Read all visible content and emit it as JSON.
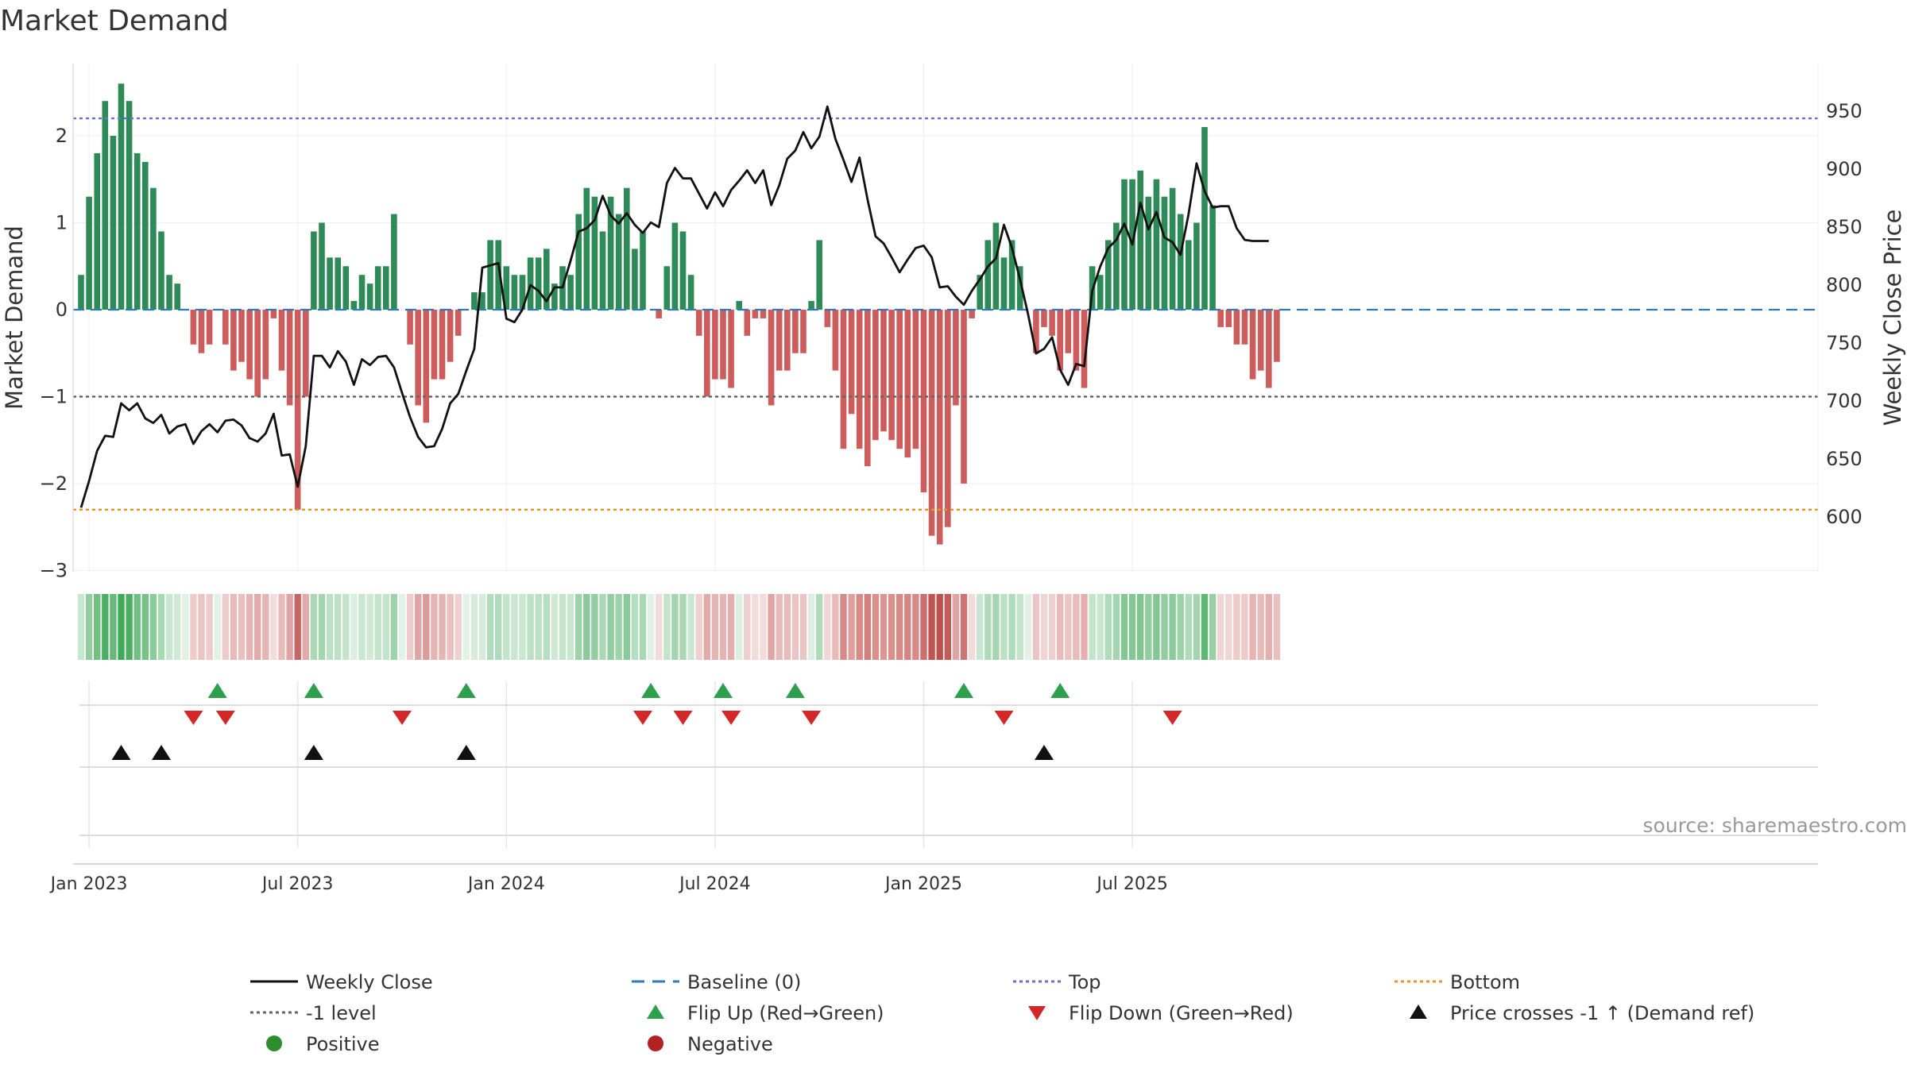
{
  "chart_data": {
    "type": "bar",
    "title": "Market Demand",
    "ylabel": "Market Demand",
    "y2label": "Weekly Close Price",
    "ylim": [
      -3.2,
      2.8
    ],
    "y2lim": [
      547,
      985
    ],
    "yticks": [
      "2",
      "1",
      "0",
      "−1",
      "−2",
      "−3"
    ],
    "y2ticks": [
      "950",
      "900",
      "850",
      "800",
      "750",
      "700",
      "650",
      "600"
    ],
    "xticks": [
      "Jan 2023",
      "Jul 2023",
      "Jan 2024",
      "Jul 2024",
      "Jan 2025",
      "Jul 2025"
    ],
    "reference_levels": {
      "top": 2.2,
      "bottom": -2.3,
      "minus_one": -1,
      "baseline": 0
    },
    "demand": [
      0.4,
      1.3,
      1.8,
      2.4,
      2.0,
      2.6,
      2.4,
      1.8,
      1.7,
      1.4,
      0.9,
      0.4,
      0.3,
      0,
      -0.4,
      -0.5,
      -0.4,
      0,
      -0.4,
      -0.7,
      -0.6,
      -0.8,
      -1.0,
      -0.8,
      -0.1,
      -0.7,
      -1.1,
      -2.3,
      -1.0,
      0.9,
      1.0,
      0.6,
      0.6,
      0.5,
      0.1,
      0.4,
      0.3,
      0.5,
      0.5,
      1.1,
      0,
      -0.4,
      -1.1,
      -1.3,
      -0.8,
      -0.8,
      -0.6,
      -0.3,
      0,
      0.2,
      0.2,
      0.8,
      0.8,
      0.5,
      0.4,
      0.4,
      0.6,
      0.6,
      0.7,
      0.3,
      0.5,
      0.4,
      1.1,
      1.4,
      1.3,
      0.9,
      1.3,
      1.1,
      1.4,
      0.7,
      0.9,
      0,
      -0.1,
      0.5,
      1.0,
      0.9,
      0.4,
      -0.3,
      -1.0,
      -0.8,
      -0.8,
      -0.9,
      0.1,
      -0.3,
      -0.1,
      -0.1,
      -1.1,
      -0.7,
      -0.7,
      -0.5,
      -0.5,
      0.1,
      0.8,
      -0.2,
      -0.7,
      -1.6,
      -1.2,
      -1.6,
      -1.8,
      -1.5,
      -1.4,
      -1.5,
      -1.6,
      -1.7,
      -1.6,
      -2.1,
      -2.6,
      -2.7,
      -2.5,
      -1.1,
      -2.0,
      -0.1,
      0.4,
      0.8,
      1.0,
      0.6,
      0.8,
      0.5,
      0,
      -0.5,
      -0.2,
      -0.3,
      -0.7,
      -0.5,
      -0.7,
      -0.9,
      0.5,
      0.4,
      0.8,
      1.0,
      1.5,
      1.5,
      1.6,
      1.3,
      1.5,
      1.3,
      1.4,
      1.1,
      0.8,
      1.0,
      2.1,
      1.2,
      -0.2,
      -0.2,
      -0.4,
      -0.4,
      -0.8,
      -0.7,
      -0.9,
      -0.6
    ],
    "weekly_close": [
      608,
      631,
      657,
      670,
      669,
      698,
      692,
      698,
      685,
      681,
      688,
      672,
      678,
      680,
      663,
      674,
      680,
      673,
      683,
      684,
      679,
      668,
      665,
      672,
      689,
      653,
      654,
      626,
      661,
      739,
      739,
      729,
      743,
      734,
      714,
      736,
      731,
      738,
      739,
      729,
      707,
      686,
      669,
      660,
      661,
      676,
      698,
      706,
      726,
      745,
      815,
      817,
      819,
      771,
      768,
      779,
      800,
      795,
      786,
      798,
      798,
      821,
      846,
      849,
      856,
      877,
      860,
      853,
      862,
      852,
      845,
      854,
      850,
      888,
      901,
      892,
      892,
      879,
      866,
      880,
      868,
      882,
      890,
      899,
      888,
      899,
      869,
      886,
      909,
      916,
      932,
      918,
      928,
      954,
      926,
      908,
      889,
      910,
      874,
      842,
      836,
      824,
      811,
      822,
      832,
      834,
      824,
      798,
      799,
      790,
      783,
      795,
      805,
      816,
      823,
      852,
      832,
      805,
      775,
      741,
      745,
      755,
      727,
      714,
      732,
      730,
      795,
      816,
      832,
      839,
      853,
      835,
      871,
      848,
      863,
      841,
      837,
      826,
      861,
      905,
      881,
      867,
      868,
      868,
      849,
      839,
      838,
      838,
      838
    ],
    "flip_up_weeks": [
      17,
      29,
      48,
      71,
      80,
      89,
      110,
      122
    ],
    "flip_down_weeks": [
      14,
      18,
      40,
      70,
      75,
      81,
      91,
      115,
      136
    ],
    "price_cross_weeks": [
      5,
      10,
      29,
      48,
      120
    ],
    "legend": [
      {
        "label": "Weekly Close",
        "symbol": "line",
        "color": "#111111"
      },
      {
        "label": "Baseline (0)",
        "symbol": "dash",
        "color": "#2e7bbf"
      },
      {
        "label": "Top",
        "symbol": "dot",
        "color": "#6f6fd0"
      },
      {
        "label": "Bottom",
        "symbol": "dot",
        "color": "#e69520"
      },
      {
        "label": "-1 level",
        "symbol": "dot",
        "color": "#666666"
      },
      {
        "label": "Flip Up (Red→Green)",
        "symbol": "tri-up",
        "color": "#2ca04c"
      },
      {
        "label": "Flip Down (Green→Red)",
        "symbol": "tri-down",
        "color": "#d62728"
      },
      {
        "label": "Price crosses -1 ↑ (Demand ref)",
        "symbol": "tri-up",
        "color": "#111111"
      },
      {
        "label": "Positive",
        "symbol": "circle",
        "color": "#2e8b2e"
      },
      {
        "label": "Negative",
        "symbol": "circle",
        "color": "#b22222"
      }
    ]
  },
  "source": "source: sharemaestro.com",
  "colors": {
    "positive": "#2e8b57",
    "negative": "#cd5c5c",
    "top": "#6f6fd0",
    "bottom": "#e69520",
    "minus_one": "#666666",
    "baseline": "#2e7bbf",
    "price": "#111111"
  }
}
